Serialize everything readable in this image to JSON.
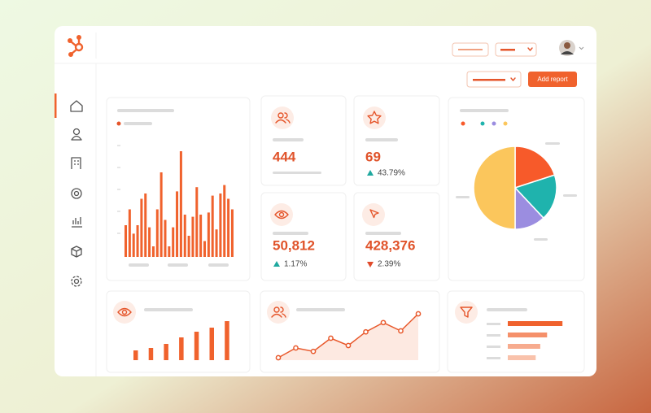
{
  "header": {
    "button": "Add report"
  },
  "stats": [
    {
      "value": "444"
    },
    {
      "value": "69",
      "change": "43.79%",
      "trend": "up"
    },
    {
      "value": "50,812",
      "change": "1.17%",
      "trend": "up"
    },
    {
      "value": "428,376",
      "change": "2.39%",
      "trend": "down"
    }
  ],
  "bar_chart": {
    "type": "bar",
    "ylim": [
      0,
      100
    ],
    "color": "#f0622d",
    "values": [
      30,
      45,
      22,
      30,
      55,
      60,
      28,
      10,
      45,
      80,
      35,
      10,
      28,
      62,
      100,
      40,
      20,
      38,
      66,
      40,
      15,
      42,
      58,
      26,
      60,
      68,
      55,
      45
    ]
  },
  "pie_chart": {
    "type": "pie",
    "series": [
      {
        "color": "#f75a2a",
        "values": [
          20
        ]
      },
      {
        "color": "#1fb3ad",
        "values": [
          18
        ]
      },
      {
        "color": "#9b8de0",
        "values": [
          12
        ]
      },
      {
        "color": "#fbc65c",
        "values": [
          50
        ]
      }
    ]
  },
  "views_chart": {
    "type": "bar",
    "ylim": [
      0,
      100
    ],
    "color": "#f0622d",
    "values": [
      24,
      30,
      40,
      56,
      70,
      80,
      96
    ]
  },
  "contacts_chart": {
    "type": "line",
    "ylim": [
      0,
      100
    ],
    "color": "#e8582b",
    "values": [
      5,
      25,
      18,
      45,
      30,
      58,
      77,
      60,
      95
    ]
  },
  "funnel_chart": {
    "type": "hbar",
    "xlim": [
      0,
      100
    ],
    "colors": [
      "#f0622d",
      "#f5906a",
      "#f7ab8e",
      "#f9c2ab"
    ],
    "values": [
      96,
      69,
      57,
      49
    ]
  }
}
